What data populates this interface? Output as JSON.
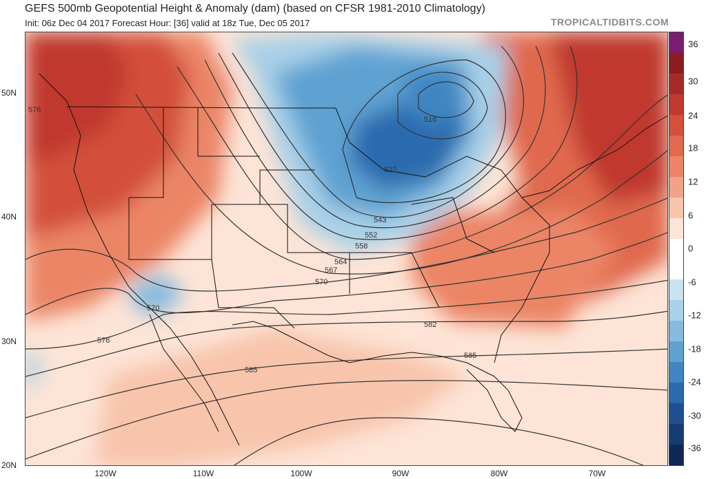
{
  "header": {
    "title": "GEFS 500mb Geopotential Height & Anomaly (dam) (based on CFSR 1981-2010 Climatology)",
    "subtitle": "Init: 06z Dec 04 2017   Forecast Hour: [36]   valid at 18z Tue, Dec 05 2017",
    "credit": "TROPICALTIDBITS.COM"
  },
  "axes": {
    "lat_labels": [
      "50N",
      "40N",
      "30N",
      "20N"
    ],
    "lon_labels": [
      "120W",
      "110W",
      "100W",
      "90W",
      "80W",
      "70W"
    ]
  },
  "colorbar": {
    "labels": [
      "36",
      "30",
      "24",
      "18",
      "12",
      "6",
      "0",
      "-6",
      "-12",
      "-18",
      "-24",
      "-30",
      "-36"
    ],
    "colors": [
      "#7a1d6e",
      "#8c1c20",
      "#a82a28",
      "#c0392e",
      "#d3503b",
      "#e0694e",
      "#eb8566",
      "#f2a286",
      "#f8c4ac",
      "#fde4d6",
      "#ffffff",
      "#ffffff",
      "#c9e2f0",
      "#a8d0e8",
      "#86bbdf",
      "#5fa2d2",
      "#3f86c3",
      "#2a6aae",
      "#1f4f92",
      "#163a74",
      "#0f2856"
    ]
  },
  "contour_labels": [
    "576",
    "516",
    "522",
    "543",
    "552",
    "558",
    "564",
    "567",
    "570",
    "570",
    "576",
    "582",
    "585",
    "585"
  ]
}
